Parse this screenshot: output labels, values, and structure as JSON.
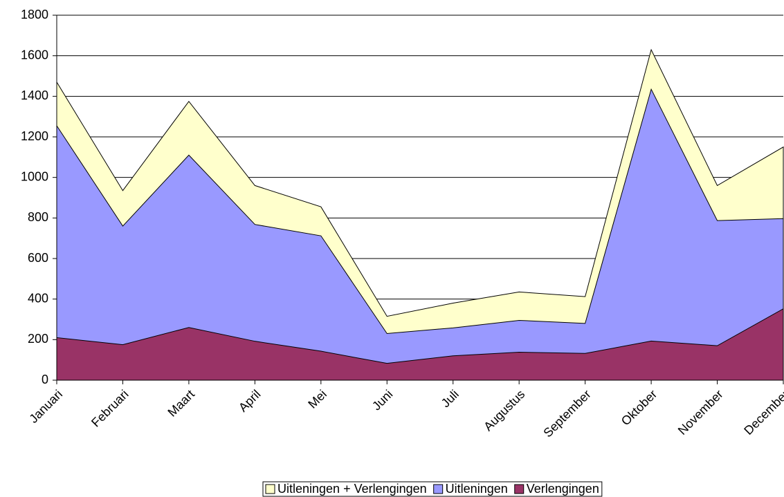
{
  "chart_data": {
    "type": "area",
    "overlapping": true,
    "categories": [
      "Januari",
      "Februari",
      "Maart",
      "April",
      "Mei",
      "Juni",
      "Juli",
      "Augustus",
      "September",
      "Oktober",
      "November",
      "December"
    ],
    "series": [
      {
        "name": "Uitleningen + Verlengingen",
        "color": "#ffffcc",
        "values": [
          1470,
          935,
          1375,
          960,
          855,
          315,
          380,
          435,
          412,
          1630,
          960,
          1150
        ]
      },
      {
        "name": "Uitleningen",
        "color": "#9999ff",
        "values": [
          1255,
          760,
          1110,
          768,
          712,
          230,
          258,
          295,
          280,
          1435,
          787,
          797
        ]
      },
      {
        "name": "Verlengingen",
        "color": "#993366",
        "values": [
          210,
          175,
          260,
          192,
          143,
          83,
          120,
          138,
          132,
          193,
          170,
          352
        ]
      }
    ],
    "ylim": [
      0,
      1800
    ],
    "yticks": [
      0,
      200,
      400,
      600,
      800,
      1000,
      1200,
      1400,
      1600,
      1800
    ],
    "grid": true,
    "legend": "bottom"
  }
}
